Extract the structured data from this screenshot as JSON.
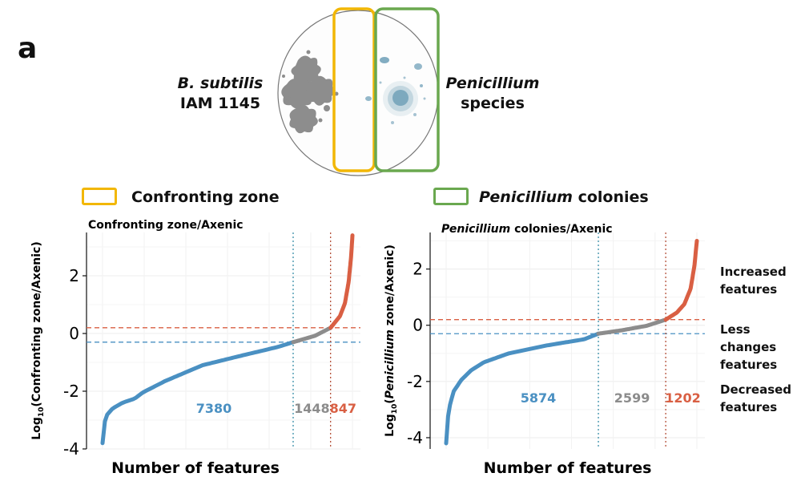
{
  "panel_label": "a",
  "diagram": {
    "left_label": {
      "line1": "B. subtilis",
      "line2": "IAM 1145"
    },
    "right_label": {
      "line1": "Penicillium",
      "line2": "species"
    }
  },
  "legend": {
    "items": [
      {
        "label_plain": "Confronting  zone",
        "label_italic": "",
        "color": "#f2b705"
      },
      {
        "label_italic": "Penicillium",
        "label_plain": " colonies",
        "color": "#6aa84f"
      }
    ]
  },
  "side_labels": {
    "increased": {
      "line1": "Increased",
      "line2": "features"
    },
    "less": {
      "line1": "Less changes",
      "line2": "features"
    },
    "decreased": {
      "line1": "Decreased",
      "line2": "features"
    }
  },
  "colors": {
    "decreased": "#4a90c2",
    "unchanged": "#8c8c8c",
    "increased": "#d95f43",
    "grid": "#ececec"
  },
  "chart_data": [
    {
      "type": "scatter",
      "title_plain": "Confronting zone/Axenic",
      "title_italic": "",
      "ylabel_pre": "Log",
      "ylabel_sub": "10",
      "ylabel_italic": "",
      "ylabel_post": "(Confronting zone/Axenic)",
      "xlabel": "Number of features",
      "ylim": [
        -4,
        3.5
      ],
      "yticks": [
        2,
        0,
        -2,
        -4
      ],
      "y_tick_labels": [
        "2",
        "0",
        "-2",
        "-4"
      ],
      "thresholds": {
        "upper": 0.2,
        "lower": -0.3
      },
      "counts": {
        "decreased": 7380,
        "unchanged": 1448,
        "increased": 847
      },
      "count_labels": {
        "decreased": "7380",
        "unchanged": "1448",
        "increased": "847"
      },
      "curve": [
        [
          0,
          -3.8
        ],
        [
          0.005,
          -3.2
        ],
        [
          0.015,
          -2.85
        ],
        [
          0.04,
          -2.6
        ],
        [
          0.08,
          -2.4
        ],
        [
          0.13,
          -2.25
        ],
        [
          0.16,
          -2.05
        ],
        [
          0.25,
          -1.65
        ],
        [
          0.4,
          -1.1
        ],
        [
          0.55,
          -0.78
        ],
        [
          0.7,
          -0.47
        ],
        [
          0.763,
          -0.3
        ],
        [
          0.85,
          -0.08
        ],
        [
          0.913,
          0.2
        ],
        [
          0.95,
          0.6
        ],
        [
          0.97,
          1.05
        ],
        [
          0.985,
          1.8
        ],
        [
          0.995,
          2.7
        ],
        [
          1.0,
          3.4
        ]
      ]
    },
    {
      "type": "scatter",
      "title_plain": " colonies/Axenic",
      "title_italic": "Penicillium",
      "ylabel_pre": "Log",
      "ylabel_sub": "10",
      "ylabel_italic": "Penicillium",
      "ylabel_post": " zone/Axenic)",
      "xlabel": "Number of features",
      "ylim": [
        -4.4,
        3.3
      ],
      "yticks": [
        2,
        0,
        -2,
        -4
      ],
      "y_tick_labels": [
        "2",
        "0",
        "-2",
        "-4"
      ],
      "thresholds": {
        "upper": 0.2,
        "lower": -0.3
      },
      "counts": {
        "decreased": 5874,
        "unchanged": 2599,
        "increased": 1202
      },
      "count_labels": {
        "decreased": "5874",
        "unchanged": "2599",
        "increased": "1202"
      },
      "curve": [
        [
          0,
          -4.2
        ],
        [
          0.003,
          -3.7
        ],
        [
          0.01,
          -3.0
        ],
        [
          0.03,
          -2.35
        ],
        [
          0.06,
          -1.95
        ],
        [
          0.1,
          -1.6
        ],
        [
          0.15,
          -1.32
        ],
        [
          0.25,
          -1.0
        ],
        [
          0.4,
          -0.72
        ],
        [
          0.55,
          -0.5
        ],
        [
          0.607,
          -0.3
        ],
        [
          0.7,
          -0.18
        ],
        [
          0.8,
          -0.02
        ],
        [
          0.876,
          0.2
        ],
        [
          0.92,
          0.45
        ],
        [
          0.95,
          0.75
        ],
        [
          0.975,
          1.3
        ],
        [
          0.99,
          2.1
        ],
        [
          1.0,
          3.0
        ]
      ]
    }
  ]
}
